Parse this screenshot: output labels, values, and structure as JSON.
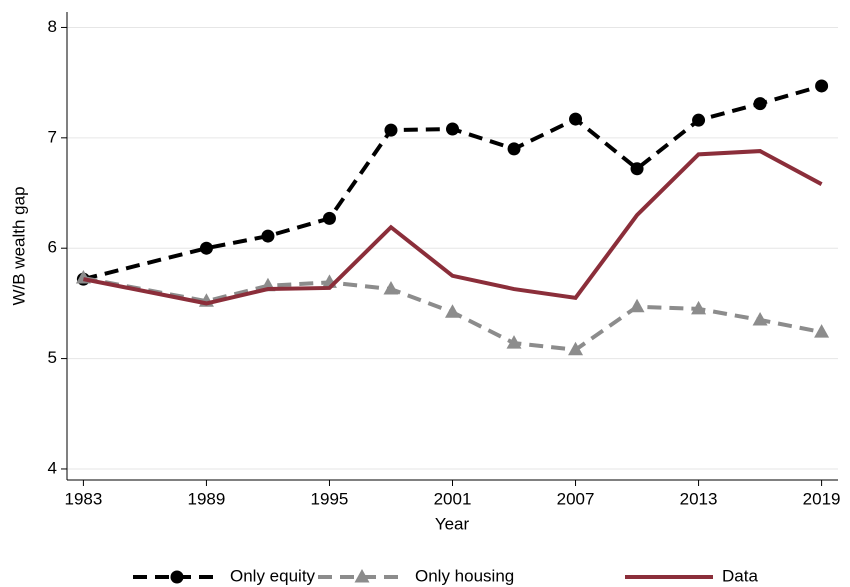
{
  "chart_data": {
    "type": "line",
    "y_label": "W/B wealth gap",
    "x_label": "Year",
    "x": [
      1983,
      1989,
      1992,
      1995,
      1998,
      2001,
      2004,
      2007,
      2010,
      2013,
      2016,
      2019
    ],
    "series": [
      {
        "name": "Only equity",
        "color": "#000000",
        "dash": true,
        "marker": "circle",
        "values": [
          5.72,
          6.0,
          6.11,
          6.27,
          7.07,
          7.08,
          6.9,
          7.17,
          6.72,
          7.16,
          7.31,
          7.47
        ]
      },
      {
        "name": "Only housing",
        "color": "#8c8c8c",
        "dash": true,
        "marker": "triangle",
        "values": [
          5.73,
          5.52,
          5.66,
          5.69,
          5.63,
          5.42,
          5.14,
          5.08,
          5.47,
          5.45,
          5.35,
          5.24
        ]
      },
      {
        "name": "Data",
        "color": "#8b2e3a",
        "dash": false,
        "marker": null,
        "values": [
          5.72,
          5.5,
          5.63,
          5.64,
          6.19,
          5.75,
          5.63,
          5.55,
          6.3,
          6.85,
          6.88,
          6.58
        ]
      }
    ],
    "xlim": [
      1982.2,
      2019.8
    ],
    "xticks": [
      1983,
      1989,
      1995,
      2001,
      2007,
      2013,
      2019
    ],
    "ylim": [
      3.9,
      8.14
    ],
    "yticks": [
      4,
      5,
      6,
      7,
      8
    ],
    "grid": true,
    "legend": "bottom"
  }
}
